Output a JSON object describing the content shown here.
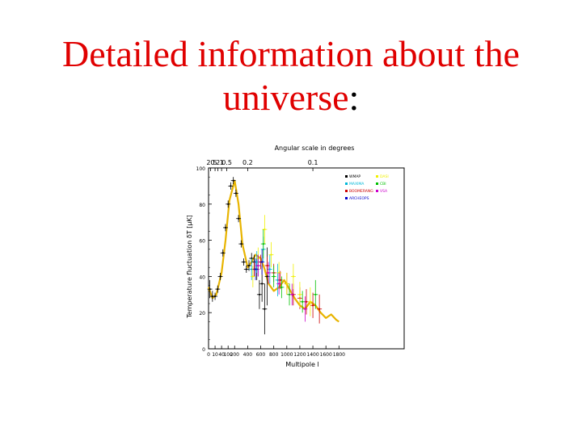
{
  "slide": {
    "title_line1": "Detailed information about the",
    "title_line2": "universe",
    "title_colon": ":"
  },
  "chart_data": {
    "type": "scatter",
    "title": "Angular scale in degrees",
    "xlabel": "Multipole l",
    "ylabel": "Temperature fluctuation δT  [μK]",
    "xlim": [
      0,
      1500
    ],
    "ylim": [
      0,
      100
    ],
    "x_tick_labels": [
      "0",
      "10",
      "40",
      "100",
      "200",
      "400",
      "600",
      "800",
      "1000",
      "1200",
      "1400",
      "1600",
      "1800"
    ],
    "x_tick_positions": [
      0,
      50,
      100,
      150,
      200,
      300,
      400,
      500,
      600,
      700,
      800,
      900,
      1000
    ],
    "y_ticks": [
      0,
      20,
      40,
      60,
      80,
      100
    ],
    "y_tick_labels": [
      "0",
      "20",
      "40",
      "60",
      "80",
      "100"
    ],
    "top_axis_labels": [
      "20",
      "5",
      "2",
      "1",
      "0.5",
      "0.2",
      "0.1"
    ],
    "top_axis_positions": [
      15,
      50,
      72,
      100,
      140,
      300,
      800
    ],
    "legend_left": [
      "WMAP",
      "MAXIMA",
      "BOOMERANG",
      "ARCHEOPS"
    ],
    "legend_right": [
      "DASI",
      "CBI",
      "VSA"
    ],
    "colors": {
      "model_curve": "#e8b400",
      "WMAP": "#000000",
      "MAXIMA": "#00b8d8",
      "BOOMERANG": "#cc0000",
      "ARCHEOPS": "#0000cc",
      "DASI": "#f0f000",
      "CBI": "#00c000",
      "VSA": "#cc00cc"
    },
    "model_curve": {
      "x": [
        0,
        30,
        60,
        100,
        130,
        160,
        200,
        230,
        260,
        300,
        330,
        360,
        400,
        430,
        460,
        500,
        540,
        580,
        620,
        660,
        700,
        740,
        780,
        820,
        860,
        900,
        940,
        980,
        1000
      ],
      "y": [
        34,
        28,
        30,
        42,
        60,
        82,
        93,
        80,
        58,
        45,
        48,
        52,
        50,
        44,
        36,
        32,
        34,
        38,
        33,
        28,
        24,
        22,
        26,
        24,
        20,
        17,
        19,
        16,
        15
      ]
    },
    "series": [
      {
        "name": "WMAP",
        "x": [
          10,
          30,
          50,
          70,
          90,
          110,
          130,
          150,
          170,
          190,
          210,
          230,
          250,
          270,
          290,
          310,
          330,
          350,
          370,
          390,
          410,
          430,
          450
        ],
        "y": [
          33,
          29,
          29,
          33,
          40,
          53,
          67,
          80,
          90,
          93,
          86,
          72,
          58,
          48,
          44,
          46,
          50,
          48,
          44,
          30,
          36,
          22,
          40
        ],
        "err": [
          5,
          3,
          2,
          2,
          2,
          2,
          2,
          2,
          2,
          2,
          2,
          2,
          2,
          2,
          2,
          3,
          3,
          4,
          6,
          8,
          10,
          14,
          16
        ]
      },
      {
        "name": "MAXIMA",
        "x": [
          330,
          370,
          420,
          470,
          530
        ],
        "y": [
          44,
          48,
          55,
          44,
          38
        ],
        "err": [
          6,
          6,
          7,
          8,
          9
        ]
      },
      {
        "name": "BOOMERANG",
        "x": [
          350,
          400,
          450,
          500,
          550,
          600,
          650,
          700,
          750,
          800,
          850
        ],
        "y": [
          44,
          48,
          46,
          42,
          38,
          36,
          30,
          28,
          26,
          24,
          22
        ],
        "err": [
          4,
          4,
          5,
          5,
          5,
          6,
          6,
          6,
          7,
          7,
          8
        ]
      },
      {
        "name": "ARCHEOPS",
        "x": [
          360,
          380,
          410
        ],
        "y": [
          44,
          46,
          48
        ],
        "err": [
          6,
          6,
          7
        ]
      },
      {
        "name": "DASI",
        "x": [
          340,
          380,
          430,
          480,
          540,
          600,
          650,
          700,
          780
        ],
        "y": [
          40,
          50,
          66,
          52,
          42,
          36,
          40,
          30,
          26
        ],
        "err": [
          6,
          6,
          8,
          7,
          6,
          6,
          7,
          7,
          8
        ]
      },
      {
        "name": "CBI",
        "x": [
          420,
          500,
          560,
          620,
          720,
          820
        ],
        "y": [
          58,
          40,
          34,
          30,
          26,
          30
        ],
        "err": [
          8,
          6,
          6,
          6,
          6,
          8
        ]
      },
      {
        "name": "VSA",
        "x": [
          380,
          460,
          540,
          640,
          740
        ],
        "y": [
          46,
          42,
          36,
          30,
          22
        ],
        "err": [
          6,
          6,
          6,
          6,
          7
        ]
      }
    ]
  }
}
